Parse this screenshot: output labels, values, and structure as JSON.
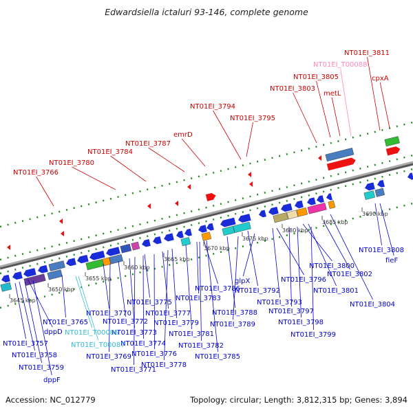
{
  "title": "Edwardsiella ictaluri 93-146, complete genome",
  "footer": {
    "accession": "Accession: NC_012779",
    "topology": "Topology: circular; Length: 3,812,315 bp; Genes: 3,894"
  },
  "colors": {
    "forward_label": "#cc0000",
    "reverse_label": "#0000cc",
    "trna_label_forward": "#ff88bb",
    "trna_label_reverse": "#33bbdd",
    "backbone": "#888888",
    "dots": "#228822"
  },
  "kbp_ticks": [
    "3645 kbp",
    "3650 kbp",
    "3655 kbp",
    "3660 kbp",
    "3665 kbp",
    "3670 kbp",
    "3675 kbp",
    "3680 kbp",
    "3685 kbp",
    "3690 kbp"
  ],
  "upper_labels": [
    "NT01EI_3811",
    "NT01EI_T00088",
    "NT01EI_3805",
    "cpxA",
    "NT01EI_3803",
    "metL",
    "NT01EI_3794",
    "NT01EI_3795",
    "emrD",
    "NT01EI_3787",
    "NT01EI_3784",
    "NT01EI_3780",
    "NT01EI_3766"
  ],
  "lower_labels": [
    "NT01EI_3808",
    "fieF",
    "NT01EI_3800",
    "NT01EI_3802",
    "NT01EI_3801",
    "NT01EI_3804",
    "NT01EI_3796",
    "glpX",
    "NT01EI_3792",
    "NT01EI_3793",
    "NT01EI_3797",
    "NT01EI_3798",
    "NT01EI_3799",
    "NT01EI_3786",
    "NT01EI_3783",
    "NT01EI_3788",
    "NT01EI_3789",
    "NT01EI_3775",
    "NT01EI_3777",
    "NT01EI_3779",
    "NT01EI_3781",
    "NT01EI_3782",
    "NT01EI_3785",
    "NT01EI_3770",
    "NT01EI_3772",
    "NT01EI_3773",
    "NT01EI_3774",
    "NT01EI_3776",
    "NT01EI_3778",
    "NT01EI_3765",
    "NT01EI_T00086",
    "NT01EI_T00087",
    "NT01EI_3769",
    "NT01EI_3771",
    "dppD",
    "NT01EI_3757",
    "NT01EI_3758",
    "NT01EI_3759",
    "dppF"
  ]
}
